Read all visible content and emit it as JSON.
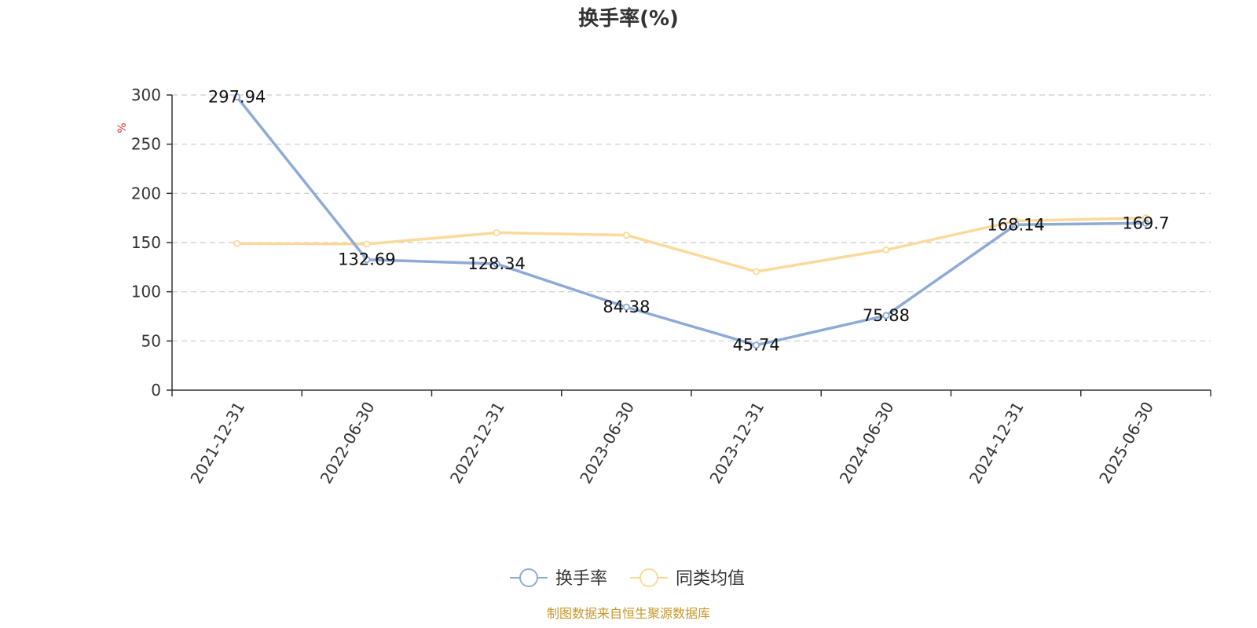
{
  "chart_data": {
    "type": "line",
    "title": "换手率(%)",
    "unit_label": "%",
    "categories": [
      "2021-12-31",
      "2022-06-30",
      "2022-12-31",
      "2023-06-30",
      "2023-12-31",
      "2024-06-30",
      "2024-12-31",
      "2025-06-30"
    ],
    "series": [
      {
        "name": "换手率",
        "color": "#8eaad6",
        "values": [
          297.94,
          132.69,
          128.34,
          84.38,
          45.74,
          75.88,
          168.14,
          169.7
        ],
        "labels": [
          "297.94",
          "132.69",
          "128.34",
          "84.38",
          "45.74",
          "75.88",
          "168.14",
          "169.7"
        ]
      },
      {
        "name": "同类均值",
        "color": "#fbd99a",
        "values": [
          149,
          148.5,
          160,
          157.5,
          120.5,
          142.5,
          172,
          175
        ]
      }
    ],
    "yticks": [
      "0",
      "50",
      "100",
      "150",
      "200",
      "250",
      "300"
    ],
    "ylim": [
      0,
      300
    ],
    "grid": true,
    "legend_position": "bottom-center"
  },
  "colors": {
    "unit": "#e0302a",
    "source": "#c9972b",
    "grid": "#cccccc",
    "axis": "#333333"
  },
  "source_text": "制图数据来自恒生聚源数据库"
}
